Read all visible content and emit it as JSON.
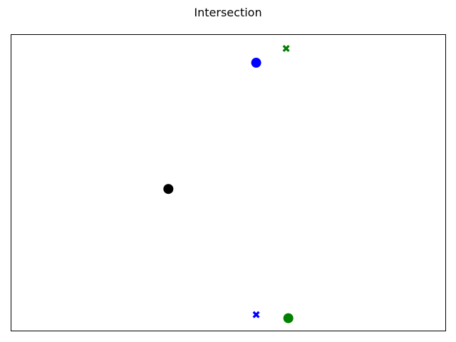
{
  "chart_data": {
    "type": "scatter",
    "title": "Intersection",
    "xlabel": "",
    "ylabel": "",
    "grid": false,
    "axes_ticks": false,
    "xlim": [
      0,
      1
    ],
    "ylim": [
      0,
      1
    ],
    "points": [
      {
        "x": 0.362,
        "y": 0.479,
        "marker": "circle",
        "color": "#000000"
      },
      {
        "x": 0.564,
        "y": 0.905,
        "marker": "circle",
        "color": "#0000ff"
      },
      {
        "x": 0.633,
        "y": 0.953,
        "marker": "x",
        "color": "#008000"
      },
      {
        "x": 0.564,
        "y": 0.055,
        "marker": "x",
        "color": "#0000ff"
      },
      {
        "x": 0.638,
        "y": 0.043,
        "marker": "circle",
        "color": "#008000"
      }
    ]
  }
}
